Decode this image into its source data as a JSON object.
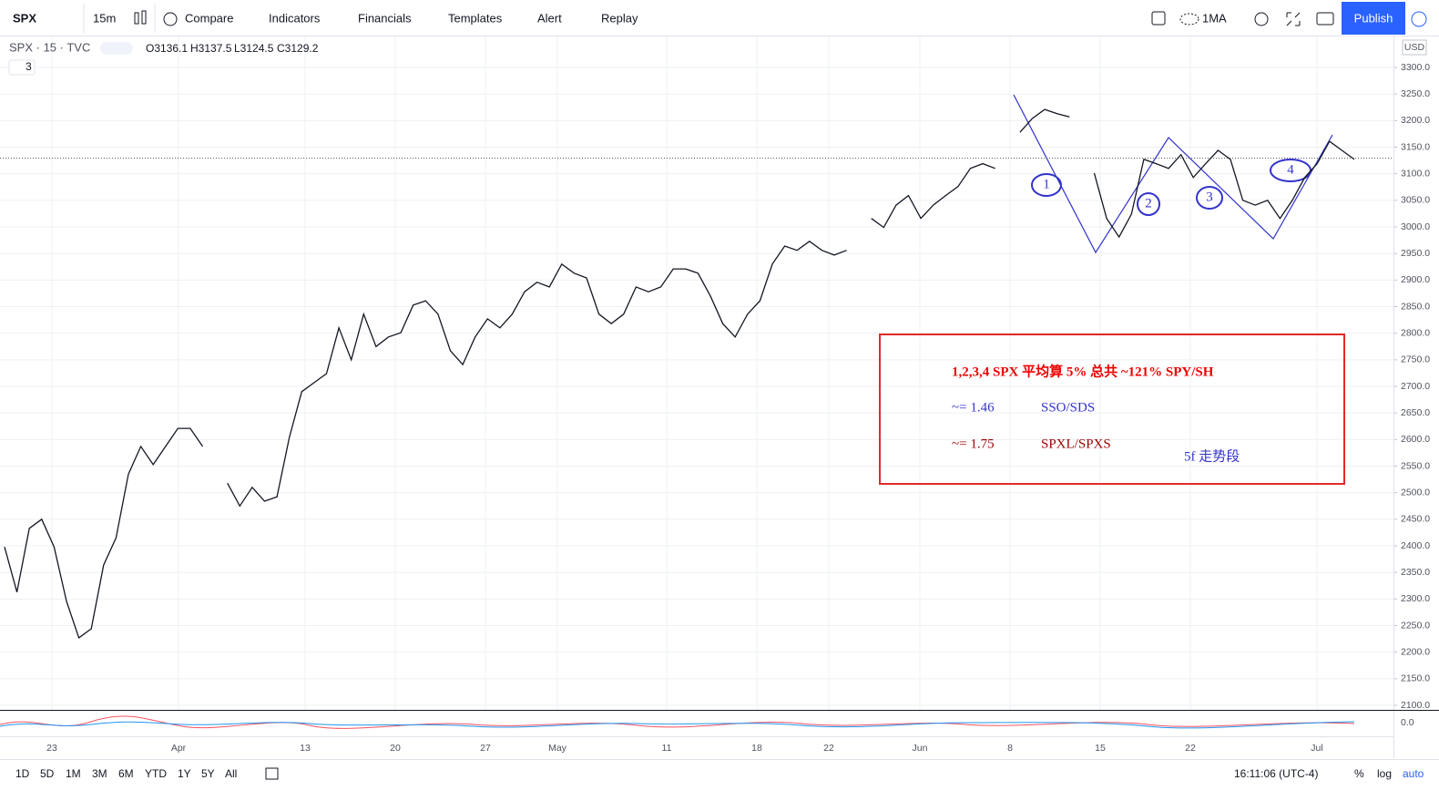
{
  "toolbar": {
    "symbol": "SPX",
    "interval": "15m",
    "buttons": [
      "Compare",
      "Indicators",
      "Financials",
      "Templates",
      "Alert",
      "Replay"
    ],
    "indicator_template": "1MA",
    "publish": "Publish"
  },
  "legend": {
    "title": "SPX · 15 · TVC",
    "open": "O3136.1",
    "high": "H3137.5",
    "low": "L3124.5",
    "close": {
      "value": 3129.2,
      "label": "C3129.2"
    },
    "collapsed_count": "3"
  },
  "chart_data": {
    "type": "line",
    "color": "#131722",
    "values": [
      2398,
      2313,
      2433,
      2450,
      2398,
      2296,
      2227,
      2244,
      2364,
      2415,
      2535,
      2587,
      2553,
      2587,
      2621,
      2621,
      2587,
      null,
      2518,
      2475,
      2510,
      2484,
      2492,
      2604,
      2690,
      2707,
      2724,
      2810,
      2750,
      2836,
      2775,
      2793,
      2801,
      2853,
      2861,
      2836,
      2767,
      2741,
      2793,
      2827,
      2810,
      2836,
      2878,
      2896,
      2887,
      2930,
      2913,
      2904,
      2836,
      2818,
      2836,
      2887,
      2878,
      2887,
      2921,
      2921,
      2913,
      2870,
      2818,
      2793,
      2836,
      2861,
      2930,
      2964,
      2956,
      2973,
      2956,
      2947,
      2956,
      null,
      3016,
      2999,
      3041,
      3059,
      3016,
      3041,
      3059,
      3076,
      3110,
      3119,
      3110,
      null,
      3178,
      3204,
      3221,
      3213,
      3207,
      null,
      3101,
      3016,
      2981,
      3024,
      3127,
      3119,
      3110,
      3136,
      3093,
      3119,
      3144,
      3127,
      3050,
      3041,
      3050,
      3016,
      3050,
      3093,
      3119,
      3161,
      3144,
      3127
    ],
    "currency": "USD",
    "yticks": [
      {
        "value": 2100,
        "label": "2100.0"
      },
      {
        "value": 2150,
        "label": "2150.0"
      },
      {
        "value": 2200,
        "label": "2200.0"
      },
      {
        "value": 2250,
        "label": "2250.0"
      },
      {
        "value": 2300,
        "label": "2300.0"
      },
      {
        "value": 2350,
        "label": "2350.0"
      },
      {
        "value": 2400,
        "label": "2400.0"
      },
      {
        "value": 2450,
        "label": "2450.0"
      },
      {
        "value": 2500,
        "label": "2500.0"
      },
      {
        "value": 2550,
        "label": "2550.0"
      },
      {
        "value": 2600,
        "label": "2600.0"
      },
      {
        "value": 2650,
        "label": "2650.0"
      },
      {
        "value": 2700,
        "label": "2700.0"
      },
      {
        "value": 2750,
        "label": "2750.0"
      },
      {
        "value": 2800,
        "label": "2800.0"
      },
      {
        "value": 2850,
        "label": "2850.0"
      },
      {
        "value": 2900,
        "label": "2900.0"
      },
      {
        "value": 2950,
        "label": "2950.0"
      },
      {
        "value": 3000,
        "label": "3000.0"
      },
      {
        "value": 3050,
        "label": "3050.0"
      },
      {
        "value": 3100,
        "label": "3100.0"
      },
      {
        "value": 3150,
        "label": "3150.0"
      },
      {
        "value": 3200,
        "label": "3200.0"
      },
      {
        "value": 3250,
        "label": "3250.0"
      },
      {
        "value": 3300,
        "label": "3300.0"
      }
    ],
    "ylim": [
      2100,
      3300
    ],
    "time_labels": [
      "23",
      "Apr",
      "13",
      "20",
      "27",
      "May",
      "11",
      "18",
      "22",
      "Jun",
      "8",
      "15",
      "22",
      "Jul"
    ]
  },
  "annotations": {
    "waves": [
      "1",
      "2",
      "3",
      "4"
    ],
    "box": {
      "line1": "1,2,3,4 SPX 平均算 5% 总共 ~121%  SPY/SH",
      "line2_ratio": "~= 1.46",
      "line2_pair": "SSO/SDS",
      "line3_ratio": "~= 1.75",
      "line3_pair": "SPXL/SPXS",
      "note": "5f 走势段"
    }
  },
  "indicator": {
    "value_label": "0.0"
  },
  "bottom_bar": {
    "ranges": [
      "1D",
      "5D",
      "1M",
      "3M",
      "6M",
      "YTD",
      "1Y",
      "5Y",
      "All"
    ],
    "clock": "16:11:06 (UTC-4)",
    "percent": "%",
    "log": "log",
    "auto": "auto"
  }
}
